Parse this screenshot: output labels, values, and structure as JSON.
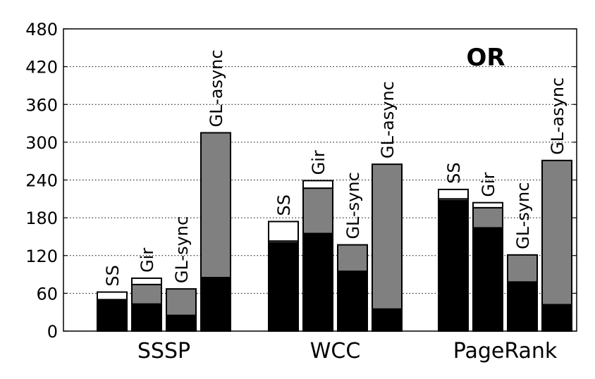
{
  "chart_data": {
    "type": "bar",
    "title": "OR",
    "xlabel": "",
    "ylabel": "",
    "ylim": [
      0,
      480
    ],
    "yticks": [
      "0",
      "60",
      "120",
      "180",
      "240",
      "300",
      "360",
      "420",
      "480"
    ],
    "grid": "horizontal dotted",
    "stacked": true,
    "groups": [
      {
        "name": "SSSP",
        "bars": [
          {
            "label": "SS",
            "segments": [
              {
                "color": "#000000",
                "value": 48
              },
              {
                "color": "#808080",
                "value": 2
              },
              {
                "color": "#ffffff",
                "value": 12
              }
            ]
          },
          {
            "label": "Gir",
            "segments": [
              {
                "color": "#000000",
                "value": 43
              },
              {
                "color": "#808080",
                "value": 31
              },
              {
                "color": "#ffffff",
                "value": 10
              }
            ]
          },
          {
            "label": "GL-sync",
            "segments": [
              {
                "color": "#000000",
                "value": 25
              },
              {
                "color": "#808080",
                "value": 42
              }
            ]
          },
          {
            "label": "GL-async",
            "segments": [
              {
                "color": "#000000",
                "value": 85
              },
              {
                "color": "#808080",
                "value": 230
              }
            ]
          }
        ]
      },
      {
        "name": "WCC",
        "bars": [
          {
            "label": "SS",
            "segments": [
              {
                "color": "#000000",
                "value": 140
              },
              {
                "color": "#808080",
                "value": 3
              },
              {
                "color": "#ffffff",
                "value": 31
              }
            ]
          },
          {
            "label": "Gir",
            "segments": [
              {
                "color": "#000000",
                "value": 155
              },
              {
                "color": "#808080",
                "value": 72
              },
              {
                "color": "#ffffff",
                "value": 12
              }
            ]
          },
          {
            "label": "GL-sync",
            "segments": [
              {
                "color": "#000000",
                "value": 95
              },
              {
                "color": "#808080",
                "value": 42
              }
            ]
          },
          {
            "label": "GL-async",
            "segments": [
              {
                "color": "#000000",
                "value": 35
              },
              {
                "color": "#808080",
                "value": 230
              }
            ]
          }
        ]
      },
      {
        "name": "PageRank",
        "bars": [
          {
            "label": "SS",
            "segments": [
              {
                "color": "#000000",
                "value": 207
              },
              {
                "color": "#808080",
                "value": 3
              },
              {
                "color": "#ffffff",
                "value": 15
              }
            ]
          },
          {
            "label": "Gir",
            "segments": [
              {
                "color": "#000000",
                "value": 164
              },
              {
                "color": "#808080",
                "value": 32
              },
              {
                "color": "#ffffff",
                "value": 8
              }
            ]
          },
          {
            "label": "GL-sync",
            "segments": [
              {
                "color": "#000000",
                "value": 78
              },
              {
                "color": "#808080",
                "value": 43
              }
            ]
          },
          {
            "label": "GL-async",
            "segments": [
              {
                "color": "#000000",
                "value": 42
              },
              {
                "color": "#808080",
                "value": 229
              }
            ]
          }
        ]
      }
    ]
  }
}
